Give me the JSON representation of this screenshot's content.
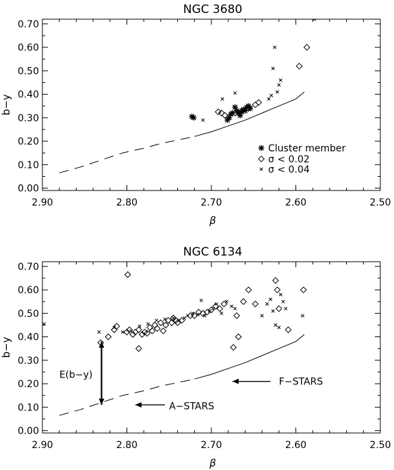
{
  "charts": [
    {
      "id": "ngc3680",
      "chart_data": {
        "type": "scatter",
        "title": "NGC 3680",
        "xlabel": "β",
        "ylabel": "b−y",
        "xlim": [
          2.9,
          2.5
        ],
        "ylim": [
          -0.01,
          0.72
        ],
        "x_reversed": true,
        "xticks": [
          "2.90",
          "2.80",
          "2.70",
          "2.60",
          "2.50"
        ],
        "yticks": [
          "0.00",
          "0.10",
          "0.20",
          "0.30",
          "0.40",
          "0.50",
          "0.60",
          "0.70"
        ],
        "grid": false,
        "legend_position": "lower-right",
        "legend": [
          "Cluster member",
          "σ < 0.02",
          "σ < 0.04"
        ],
        "reference_curve": {
          "dashed": [
            [
              2.88,
              0.065
            ],
            [
              2.855,
              0.09
            ],
            [
              2.83,
              0.12
            ],
            [
              2.805,
              0.15
            ],
            [
              2.78,
              0.17
            ],
            [
              2.76,
              0.19
            ],
            [
              2.74,
              0.205
            ],
            [
              2.72,
              0.22
            ]
          ],
          "solid": [
            [
              2.72,
              0.22
            ],
            [
              2.7,
              0.24
            ],
            [
              2.68,
              0.265
            ],
            [
              2.66,
              0.29
            ],
            [
              2.64,
              0.32
            ],
            [
              2.62,
              0.35
            ],
            [
              2.6,
              0.38
            ],
            [
              2.59,
              0.41
            ]
          ]
        },
        "series": [
          {
            "name": "Cluster member",
            "marker": "asterisk",
            "points": [
              [
                2.723,
                0.305
              ],
              [
                2.721,
                0.3
              ],
              [
                2.681,
                0.29
              ],
              [
                2.679,
                0.3
              ],
              [
                2.677,
                0.315
              ],
              [
                2.675,
                0.32
              ],
              [
                2.672,
                0.345
              ],
              [
                2.67,
                0.33
              ],
              [
                2.668,
                0.32
              ],
              [
                2.666,
                0.31
              ],
              [
                2.664,
                0.325
              ],
              [
                2.662,
                0.335
              ],
              [
                2.66,
                0.33
              ],
              [
                2.658,
                0.345
              ],
              [
                2.656,
                0.35
              ],
              [
                2.654,
                0.34
              ]
            ]
          },
          {
            "name": "σ < 0.02",
            "marker": "diamond",
            "points": [
              [
                2.692,
                0.325
              ],
              [
                2.688,
                0.32
              ],
              [
                2.684,
                0.31
              ],
              [
                2.672,
                0.32
              ],
              [
                2.664,
                0.33
              ],
              [
                2.656,
                0.34
              ],
              [
                2.648,
                0.355
              ],
              [
                2.644,
                0.365
              ],
              [
                2.596,
                0.52
              ],
              [
                2.587,
                0.6
              ]
            ]
          },
          {
            "name": "σ < 0.04",
            "marker": "cross",
            "points": [
              [
                2.71,
                0.29
              ],
              [
                2.687,
                0.38
              ],
              [
                2.672,
                0.405
              ],
              [
                2.632,
                0.38
              ],
              [
                2.629,
                0.395
              ],
              [
                2.627,
                0.51
              ],
              [
                2.625,
                0.6
              ],
              [
                2.622,
                0.41
              ],
              [
                2.62,
                0.44
              ],
              [
                2.618,
                0.46
              ],
              [
                2.578,
                0.72
              ]
            ]
          }
        ]
      }
    },
    {
      "id": "ngc6134",
      "chart_data": {
        "type": "scatter",
        "title": "NGC 6134",
        "xlabel": "β",
        "ylabel": "b−y",
        "xlim": [
          2.9,
          2.5
        ],
        "ylim": [
          -0.01,
          0.72
        ],
        "x_reversed": true,
        "xticks": [
          "2.90",
          "2.80",
          "2.70",
          "2.60",
          "2.50"
        ],
        "yticks": [
          "0.00",
          "0.10",
          "0.20",
          "0.30",
          "0.40",
          "0.50",
          "0.60",
          "0.70"
        ],
        "grid": false,
        "annotations": [
          {
            "text": "E(b−y)",
            "x": 2.88,
            "y": 0.24
          },
          {
            "text": "F−STARS",
            "x": 2.62,
            "y": 0.21
          },
          {
            "text": "A−STARS",
            "x": 2.75,
            "y": 0.105
          }
        ],
        "arrows": [
          {
            "from": [
              2.83,
              0.38
            ],
            "to": [
              2.83,
              0.11
            ],
            "double_headed": true
          },
          {
            "from": [
              2.63,
              0.21
            ],
            "to": [
              2.675,
              0.21
            ],
            "double_headed": false
          },
          {
            "from": [
              2.755,
              0.11
            ],
            "to": [
              2.79,
              0.11
            ],
            "double_headed": false
          }
        ],
        "reference_curve": {
          "dashed": [
            [
              2.88,
              0.065
            ],
            [
              2.855,
              0.09
            ],
            [
              2.83,
              0.12
            ],
            [
              2.805,
              0.15
            ],
            [
              2.78,
              0.17
            ],
            [
              2.76,
              0.19
            ],
            [
              2.74,
              0.205
            ],
            [
              2.72,
              0.22
            ]
          ],
          "solid": [
            [
              2.72,
              0.22
            ],
            [
              2.7,
              0.24
            ],
            [
              2.68,
              0.265
            ],
            [
              2.66,
              0.29
            ],
            [
              2.64,
              0.32
            ],
            [
              2.62,
              0.35
            ],
            [
              2.6,
              0.38
            ],
            [
              2.59,
              0.41
            ]
          ]
        },
        "series": [
          {
            "name": "σ < 0.02",
            "marker": "diamond",
            "points": [
              [
                2.831,
                0.375
              ],
              [
                2.822,
                0.4
              ],
              [
                2.815,
                0.43
              ],
              [
                2.812,
                0.445
              ],
              [
                2.799,
                0.665
              ],
              [
                2.8,
                0.42
              ],
              [
                2.797,
                0.43
              ],
              [
                2.793,
                0.41
              ],
              [
                2.79,
                0.42
              ],
              [
                2.786,
                0.43
              ],
              [
                2.786,
                0.35
              ],
              [
                2.782,
                0.41
              ],
              [
                2.779,
                0.42
              ],
              [
                2.776,
                0.415
              ],
              [
                2.773,
                0.44
              ],
              [
                2.77,
                0.425
              ],
              [
                2.767,
                0.45
              ],
              [
                2.764,
                0.435
              ],
              [
                2.76,
                0.46
              ],
              [
                2.757,
                0.425
              ],
              [
                2.754,
                0.45
              ],
              [
                2.751,
                0.47
              ],
              [
                2.747,
                0.46
              ],
              [
                2.745,
                0.48
              ],
              [
                2.742,
                0.47
              ],
              [
                2.74,
                0.46
              ],
              [
                2.735,
                0.47
              ],
              [
                2.725,
                0.49
              ],
              [
                2.72,
                0.49
              ],
              [
                2.715,
                0.505
              ],
              [
                2.71,
                0.5
              ],
              [
                2.705,
                0.505
              ],
              [
                2.7,
                0.515
              ],
              [
                2.695,
                0.53
              ],
              [
                2.69,
                0.52
              ],
              [
                2.685,
                0.54
              ],
              [
                2.674,
                0.355
              ],
              [
                2.668,
                0.4
              ],
              [
                2.67,
                0.49
              ],
              [
                2.662,
                0.55
              ],
              [
                2.656,
                0.6
              ],
              [
                2.648,
                0.54
              ],
              [
                2.624,
                0.64
              ],
              [
                2.622,
                0.6
              ],
              [
                2.62,
                0.52
              ],
              [
                2.609,
                0.43
              ],
              [
                2.591,
                0.6
              ]
            ]
          },
          {
            "name": "σ < 0.04",
            "marker": "cross",
            "points": [
              [
                2.898,
                0.455
              ],
              [
                2.833,
                0.42
              ],
              [
                2.815,
                0.44
              ],
              [
                2.805,
                0.42
              ],
              [
                2.795,
                0.425
              ],
              [
                2.785,
                0.445
              ],
              [
                2.775,
                0.455
              ],
              [
                2.765,
                0.47
              ],
              [
                2.755,
                0.475
              ],
              [
                2.745,
                0.48
              ],
              [
                2.738,
                0.47
              ],
              [
                2.732,
                0.48
              ],
              [
                2.728,
                0.49
              ],
              [
                2.722,
                0.5
              ],
              [
                2.716,
                0.495
              ],
              [
                2.712,
                0.555
              ],
              [
                2.708,
                0.49
              ],
              [
                2.702,
                0.51
              ],
              [
                2.698,
                0.52
              ],
              [
                2.694,
                0.54
              ],
              [
                2.688,
                0.5
              ],
              [
                2.682,
                0.55
              ],
              [
                2.676,
                0.53
              ],
              [
                2.672,
                0.52
              ],
              [
                2.64,
                0.49
              ],
              [
                2.634,
                0.54
              ],
              [
                2.63,
                0.56
              ],
              [
                2.627,
                0.51
              ],
              [
                2.624,
                0.45
              ],
              [
                2.62,
                0.44
              ],
              [
                2.618,
                0.58
              ],
              [
                2.615,
                0.55
              ],
              [
                2.612,
                0.52
              ],
              [
                2.592,
                0.49
              ]
            ]
          }
        ]
      }
    }
  ]
}
